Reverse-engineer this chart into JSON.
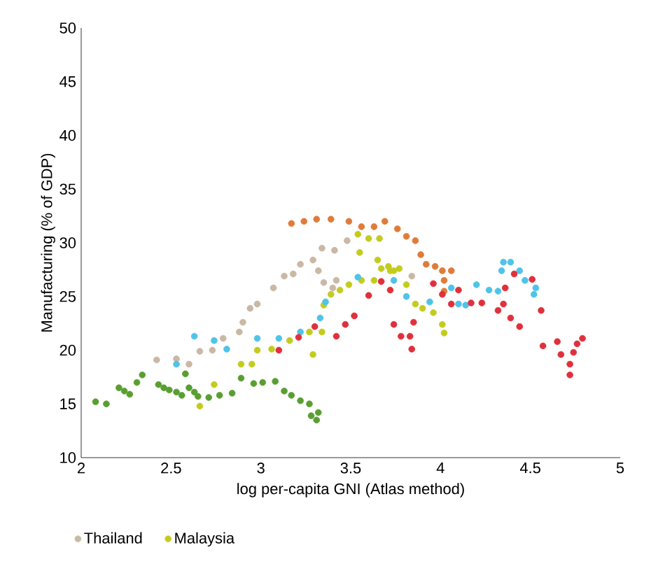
{
  "chart_data": {
    "type": "scatter",
    "xlabel": "log per-capita GNI (Atlas method)",
    "ylabel": "Manufacturing (% of GDP)",
    "xlim": [
      2,
      5
    ],
    "ylim": [
      10,
      50
    ],
    "xticks": [
      2,
      2.5,
      3,
      3.5,
      4,
      4.5,
      5
    ],
    "yticks": [
      10,
      15,
      20,
      25,
      30,
      35,
      40,
      45,
      50
    ],
    "marker": "circle",
    "legend": "bottom left",
    "series": [
      {
        "name": "Thailand",
        "color": "#c9b8a4",
        "x": [
          2.42,
          2.53,
          2.6,
          2.66,
          2.73,
          2.79,
          2.88,
          2.9,
          2.94,
          2.98,
          3.07,
          3.13,
          3.18,
          3.22,
          3.29,
          3.32,
          3.34,
          3.35,
          3.4,
          3.41,
          3.42,
          3.48,
          3.84
        ],
        "values": [
          19.1,
          19.2,
          18.7,
          19.9,
          20.0,
          21.1,
          21.7,
          22.6,
          23.9,
          24.3,
          25.8,
          26.9,
          27.1,
          28.0,
          28.4,
          27.4,
          29.5,
          26.3,
          25.8,
          29.3,
          26.5,
          30.2,
          26.9
        ]
      },
      {
        "name": "Malaysia",
        "color": "#c3cc1e",
        "x": [
          2.66,
          2.74,
          2.89,
          2.95,
          2.98,
          3.06,
          3.16,
          3.27,
          3.29,
          3.34,
          3.35,
          3.39,
          3.44,
          3.49,
          3.54,
          3.55,
          3.56,
          3.6,
          3.63,
          3.65,
          3.66,
          3.67,
          3.71,
          3.72,
          3.74,
          3.77,
          3.81,
          3.86,
          3.9,
          3.96,
          4.01,
          4.02
        ],
        "values": [
          14.8,
          16.8,
          18.7,
          18.7,
          20.0,
          20.1,
          20.9,
          21.7,
          19.6,
          21.7,
          24.2,
          25.2,
          25.6,
          26.1,
          30.8,
          29.1,
          26.5,
          30.4,
          26.5,
          28.4,
          30.4,
          27.6,
          27.8,
          27.4,
          27.4,
          27.6,
          26.1,
          24.3,
          23.9,
          23.5,
          22.4,
          21.6
        ]
      },
      {
        "color": "#e07b39",
        "x": [
          3.17,
          3.24,
          3.31,
          3.39,
          3.49,
          3.56,
          3.63,
          3.69,
          3.76,
          3.81,
          3.86,
          3.89,
          3.92,
          3.97,
          4.01,
          4.02,
          4.02,
          4.06
        ],
        "values": [
          31.8,
          32.0,
          32.2,
          32.2,
          32.0,
          31.5,
          31.5,
          32.0,
          31.3,
          30.6,
          30.2,
          28.9,
          28.0,
          27.8,
          27.4,
          26.5,
          25.5,
          27.4
        ]
      },
      {
        "color": "#4fc3e8",
        "x": [
          2.53,
          2.63,
          2.74,
          2.81,
          2.98,
          3.1,
          3.22,
          3.33,
          3.36,
          3.54,
          3.74,
          3.81,
          3.94,
          4.06,
          4.1,
          4.14,
          4.2,
          4.27,
          4.32,
          4.34,
          4.35,
          4.39,
          4.44,
          4.47,
          4.52,
          4.53
        ],
        "values": [
          18.7,
          21.3,
          20.9,
          20.1,
          21.1,
          21.1,
          21.7,
          23.0,
          24.5,
          26.8,
          26.5,
          25.0,
          24.5,
          25.8,
          24.3,
          24.2,
          26.1,
          25.6,
          25.5,
          27.4,
          28.2,
          28.2,
          27.4,
          26.5,
          25.2,
          25.8
        ]
      },
      {
        "color": "#e0303c",
        "x": [
          3.1,
          3.21,
          3.3,
          3.42,
          3.47,
          3.52,
          3.6,
          3.67,
          3.72,
          3.74,
          3.78,
          3.83,
          3.84,
          3.85,
          3.96,
          4.01,
          4.06,
          4.1,
          4.17,
          4.23,
          4.32,
          4.35,
          4.36,
          4.39,
          4.41,
          4.44,
          4.51,
          4.56,
          4.57,
          4.65,
          4.67,
          4.72,
          4.72,
          4.74,
          4.76,
          4.79
        ],
        "values": [
          20.0,
          21.2,
          22.2,
          21.3,
          22.4,
          23.2,
          25.1,
          26.4,
          25.6,
          22.4,
          21.3,
          21.3,
          20.1,
          22.6,
          26.2,
          25.2,
          24.3,
          25.6,
          24.4,
          24.4,
          23.7,
          24.3,
          25.8,
          23.0,
          27.1,
          22.2,
          26.6,
          23.7,
          20.4,
          20.8,
          19.6,
          18.7,
          17.7,
          19.8,
          20.6,
          21.1
        ]
      },
      {
        "color": "#5a9e32",
        "x": [
          2.08,
          2.14,
          2.21,
          2.24,
          2.27,
          2.31,
          2.34,
          2.43,
          2.46,
          2.49,
          2.53,
          2.56,
          2.58,
          2.6,
          2.63,
          2.65,
          2.71,
          2.77,
          2.84,
          2.89,
          2.96,
          3.01,
          3.08,
          3.13,
          3.17,
          3.22,
          3.27,
          3.28,
          3.31,
          3.32
        ],
        "values": [
          15.2,
          15.0,
          16.5,
          16.2,
          15.9,
          17.0,
          17.7,
          16.8,
          16.5,
          16.3,
          16.1,
          15.8,
          17.8,
          16.5,
          16.1,
          15.7,
          15.6,
          15.8,
          16.0,
          17.4,
          16.9,
          17.0,
          17.1,
          16.2,
          15.8,
          15.3,
          15.0,
          13.9,
          13.5,
          14.2
        ]
      }
    ]
  }
}
